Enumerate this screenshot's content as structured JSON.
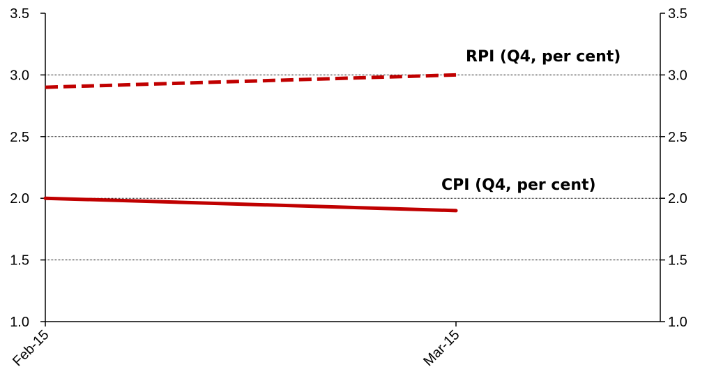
{
  "chart_data": {
    "type": "line",
    "x": [
      "Feb-15",
      "Mar-15"
    ],
    "ylim": [
      1.0,
      3.5
    ],
    "y_ticks": [
      "1.0",
      "1.5",
      "2.0",
      "2.5",
      "3.0",
      "3.5"
    ],
    "secondary_y_ticks": [
      "1.0",
      "1.5",
      "2.0",
      "2.5",
      "3.0",
      "3.5"
    ],
    "grid": "horizontal",
    "series": [
      {
        "name": "RPI (Q4, per cent)",
        "values": [
          2.9,
          3.0
        ],
        "style": "dashed",
        "color": "#c00000"
      },
      {
        "name": "CPI (Q4, per cent)",
        "values": [
          2.0,
          1.9
        ],
        "style": "solid",
        "color": "#c00000"
      }
    ]
  }
}
